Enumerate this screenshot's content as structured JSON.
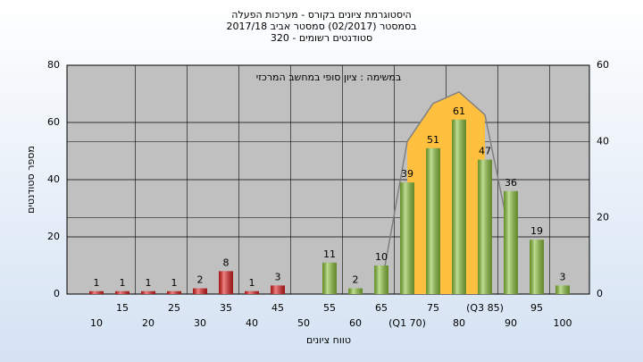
{
  "chart_data": {
    "type": "bar",
    "title": "היסטוגרמת ציונים בקורס - מערכות הפעלה",
    "subtitle": "בסמסטר  (02/2017)  סמסטר אביב 2017/18",
    "subtitle2": "סטודנטים רשומים - 320",
    "annotation": "במשימה : ציון סופי במחשב המרכזי",
    "y_label": "מספר סטודנטים",
    "x_label": "טווח ציונים",
    "categories": [
      "10",
      "15",
      "20",
      "25",
      "30",
      "35",
      "40",
      "45",
      "50",
      "55",
      "60",
      "65",
      "(Q1 70)",
      "75",
      "80",
      "(Q3 85)",
      "90",
      "95",
      "100"
    ],
    "values": [
      1,
      1,
      1,
      1,
      2,
      8,
      1,
      3,
      null,
      11,
      2,
      10,
      39,
      51,
      61,
      47,
      36,
      19,
      3
    ],
    "colors": [
      "#e02020",
      "#e02020",
      "#e02020",
      "#e02020",
      "#e02020",
      "#e02020",
      "#e02020",
      "#e02020",
      null,
      "#8cc43c",
      "#8cc43c",
      "#8cc43c",
      "#8cc43c",
      "#8cc43c",
      "#8cc43c",
      "#8cc43c",
      "#8cc43c",
      "#8cc43c",
      "#8cc43c"
    ],
    "ylim": [
      0,
      80
    ],
    "yticks": [
      0,
      20,
      40,
      60,
      80
    ],
    "y2lim": [
      0,
      60
    ],
    "y2ticks": [
      0,
      20,
      40,
      60
    ],
    "overlays": [
      {
        "kind": "area",
        "axis": "y2",
        "color": "#ffc040",
        "values": [
          null,
          null,
          null,
          null,
          null,
          null,
          null,
          null,
          null,
          null,
          null,
          null,
          40,
          50,
          53,
          47,
          null,
          null,
          null
        ]
      },
      {
        "kind": "line",
        "axis": "y2",
        "color": "#808080",
        "values": [
          null,
          null,
          null,
          null,
          null,
          null,
          null,
          null,
          null,
          null,
          null,
          2,
          40,
          50,
          53,
          47,
          14,
          null,
          null
        ]
      }
    ],
    "grid": true
  }
}
